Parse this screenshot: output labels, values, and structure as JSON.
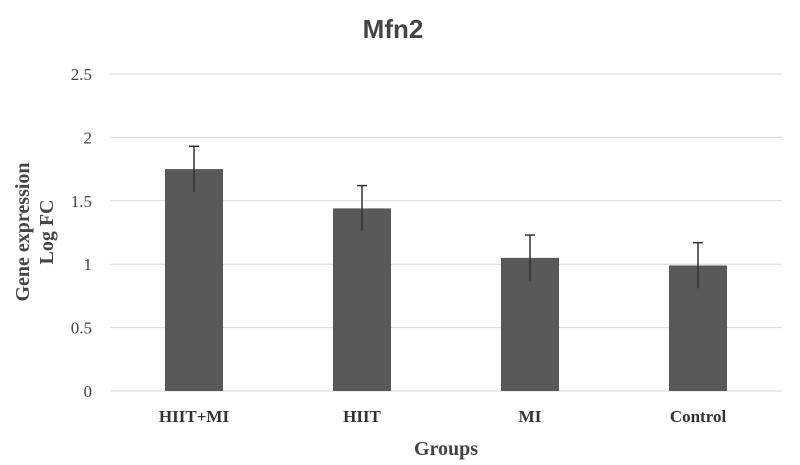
{
  "chart_data": {
    "type": "bar",
    "title": "Mfn2",
    "xlabel": "Groups",
    "ylabel": [
      "Gene expression",
      "Log FC"
    ],
    "categories": [
      "HIIT+MI",
      "HIIT",
      "MI",
      "Control"
    ],
    "values": [
      1.75,
      1.44,
      1.05,
      0.99
    ],
    "error": [
      0.18,
      0.18,
      0.18,
      0.18
    ],
    "ylim": [
      0,
      2.5
    ],
    "yticks": [
      0,
      0.5,
      1,
      1.5,
      2,
      2.5
    ],
    "ytick_labels": [
      "0",
      "0.5",
      "1",
      "1.5",
      "2",
      "2.5"
    ],
    "grid": true,
    "colors": {
      "bar": "#595959",
      "grid": "#d9d9d9",
      "text": "#444444"
    }
  }
}
